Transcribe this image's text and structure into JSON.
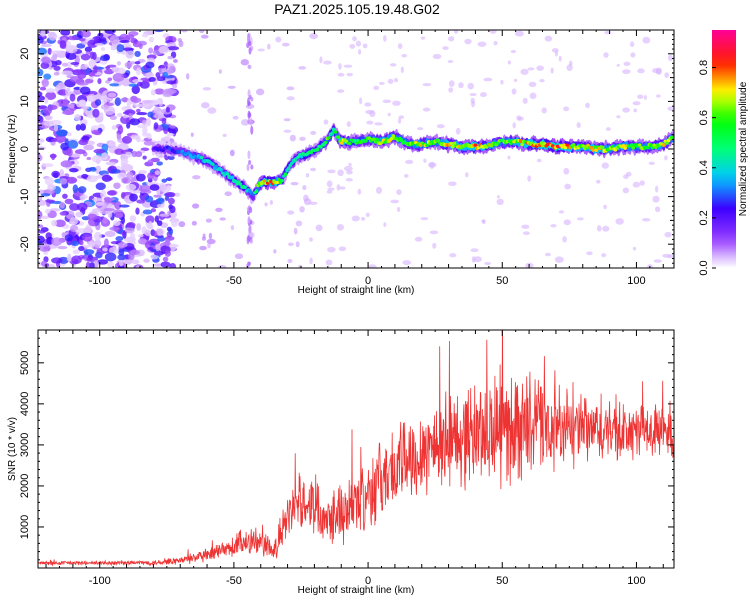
{
  "title": "PAZ1.2025.105.19.48.G02",
  "chart_data": [
    {
      "type": "heatmap",
      "title": "PAZ1.2025.105.19.48.G02",
      "xlabel": "Height of straight line (km)",
      "ylabel": "Frequency (Hz)",
      "xlim": [
        -123,
        114
      ],
      "ylim": [
        -25,
        25
      ],
      "xticks": [
        -100,
        -50,
        0,
        50,
        100
      ],
      "yticks": [
        -20,
        -10,
        0,
        10,
        20
      ],
      "colorbar": {
        "label": "Normalized spectral amplitude",
        "range": [
          0,
          0.95
        ],
        "ticks": [
          0.0,
          0.2,
          0.4,
          0.6,
          0.8
        ],
        "tick_labels": [
          "0.0",
          "0.2",
          "0.4",
          "0.6",
          "0.8"
        ],
        "colormap": [
          "#ffffff",
          "#8800ff",
          "#0000ff",
          "#00ffff",
          "#00ff00",
          "#ffff00",
          "#ff0000",
          "#ff00aa"
        ]
      },
      "ridge": {
        "x": [
          -80,
          -75,
          -70,
          -65,
          -60,
          -55,
          -50,
          -45,
          -43,
          -40,
          -38,
          -35,
          -32,
          -30,
          -27,
          -25,
          -22,
          -18,
          -15,
          -13,
          -10,
          -5,
          0,
          5,
          10,
          15,
          20,
          25,
          30,
          35,
          40,
          45,
          50,
          55,
          60,
          65,
          70,
          75,
          80,
          85,
          90,
          95,
          100,
          105,
          110,
          114
        ],
        "freq": [
          0,
          0,
          -0.5,
          -1.5,
          -2.5,
          -4.5,
          -6.5,
          -8.5,
          -10,
          -7,
          -7,
          -7,
          -6.5,
          -4,
          -2,
          -1.5,
          -1,
          0.5,
          2,
          4,
          1.5,
          1.5,
          2,
          1.5,
          2.5,
          1,
          1,
          1.5,
          1,
          0.5,
          0.5,
          0.8,
          1.5,
          1.5,
          1,
          1,
          0.5,
          0.5,
          0.5,
          0,
          0,
          0.5,
          0.5,
          0.5,
          1,
          2.5
        ],
        "amplitude": [
          0.25,
          0.3,
          0.35,
          0.4,
          0.5,
          0.45,
          0.5,
          0.55,
          0.35,
          0.9,
          0.95,
          0.9,
          0.6,
          0.55,
          0.5,
          0.5,
          0.6,
          0.55,
          0.7,
          0.5,
          0.9,
          0.6,
          0.7,
          0.8,
          0.75,
          0.7,
          0.8,
          0.7,
          0.85,
          0.8,
          0.9,
          0.8,
          0.7,
          0.8,
          0.85,
          0.9,
          0.95,
          0.85,
          0.8,
          0.85,
          0.75,
          0.8,
          0.7,
          0.75,
          0.8,
          0.7
        ]
      }
    },
    {
      "type": "line",
      "xlabel": "Height of straight line (km)",
      "ylabel": "SNR (10 * v/v)",
      "xlim": [
        -123,
        114
      ],
      "ylim": [
        0,
        5800
      ],
      "xticks": [
        -100,
        -50,
        0,
        50,
        100
      ],
      "yticks": [
        1000,
        2000,
        3000,
        4000,
        5000
      ],
      "line_color": "#ee3333",
      "envelope": {
        "x": [
          -123,
          -100,
          -80,
          -70,
          -60,
          -50,
          -45,
          -40,
          -35,
          -30,
          -25,
          -20,
          -15,
          -10,
          -5,
          0,
          10,
          20,
          30,
          40,
          50,
          60,
          70,
          80,
          90,
          100,
          110,
          114
        ],
        "mean": [
          120,
          120,
          130,
          180,
          300,
          500,
          700,
          600,
          400,
          1200,
          1700,
          1500,
          1300,
          1400,
          1500,
          1900,
          2400,
          2900,
          3100,
          3300,
          3400,
          3500,
          3350,
          3350,
          3300,
          3300,
          3350,
          3300
        ],
        "spread": [
          60,
          60,
          70,
          120,
          200,
          350,
          500,
          400,
          300,
          700,
          800,
          800,
          800,
          900,
          1000,
          1100,
          1200,
          1300,
          1400,
          1500,
          1700,
          1500,
          1200,
          1000,
          900,
          800,
          700,
          1000
        ]
      }
    }
  ]
}
